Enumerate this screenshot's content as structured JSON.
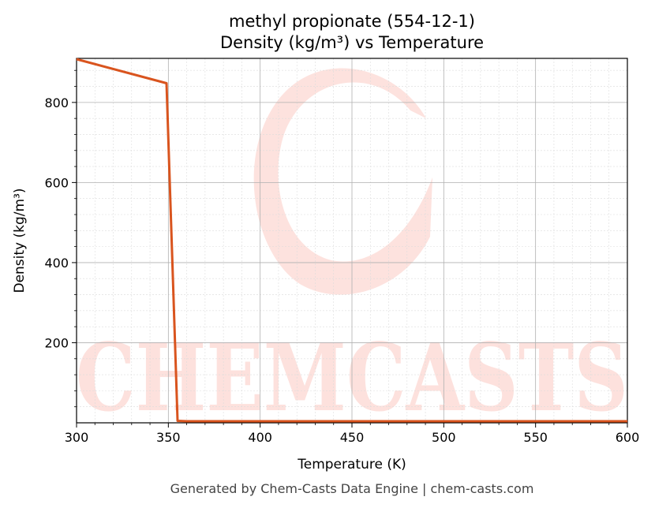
{
  "chart_data": {
    "type": "line",
    "title": "methyl propionate (554-12-1)",
    "subtitle": "Density (kg/m³) vs Temperature",
    "xlabel": "Temperature (K)",
    "ylabel": "Density (kg/m³)",
    "xlim": [
      300,
      600
    ],
    "ylim": [
      0,
      910
    ],
    "xticks": [
      300,
      350,
      400,
      450,
      500,
      550,
      600
    ],
    "yticks": [
      200,
      400,
      600,
      800
    ],
    "grid": true,
    "series": [
      {
        "color": "#d9541e",
        "x": [
          300,
          349,
          355,
          360,
          400,
          450,
          500,
          550,
          600
        ],
        "y": [
          908,
          848,
          5,
          4,
          4,
          4,
          4,
          4,
          4
        ]
      }
    ]
  },
  "watermark": {
    "text": "CHEMCASTS"
  },
  "footer": "Generated by Chem-Casts Data Engine | chem-casts.com"
}
